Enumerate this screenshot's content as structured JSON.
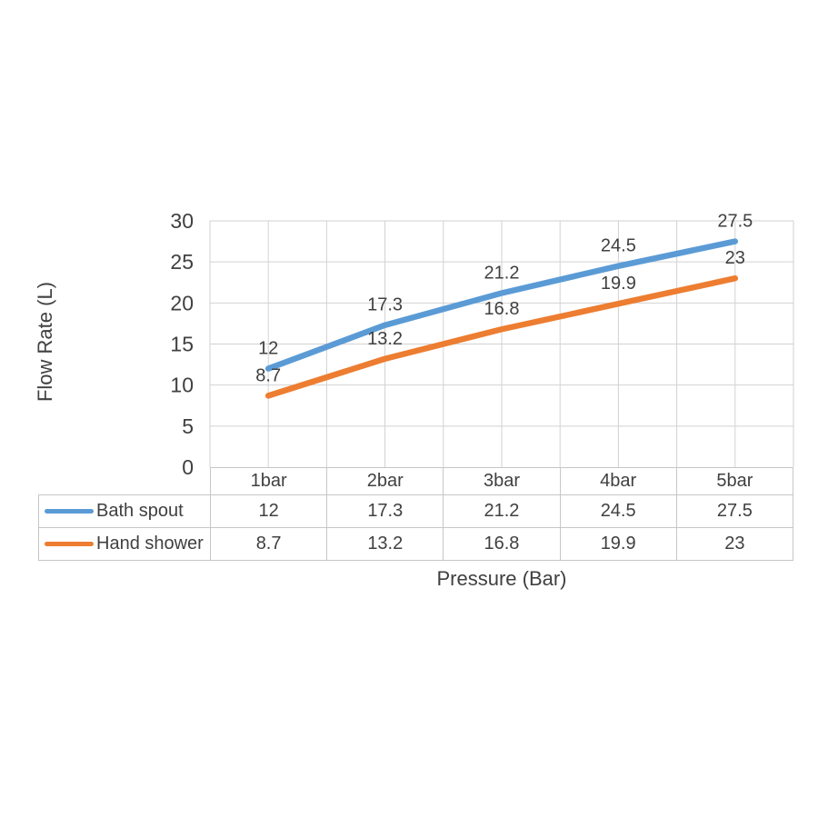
{
  "chart_data": {
    "type": "line",
    "xlabel": "Pressure (Bar)",
    "ylabel": "Flow Rate (L)",
    "categories": [
      "1bar",
      "2bar",
      "3bar",
      "4bar",
      "5bar"
    ],
    "series": [
      {
        "name": "Bath spout",
        "color": "#5B9BD5",
        "values": [
          12,
          17.3,
          21.2,
          24.5,
          27.5
        ]
      },
      {
        "name": "Hand shower",
        "color": "#ED7D31",
        "values": [
          8.7,
          13.2,
          16.8,
          19.9,
          23
        ]
      }
    ],
    "y_ticks": [
      0,
      5,
      10,
      15,
      20,
      25,
      30
    ],
    "ylim": [
      0,
      30
    ],
    "grid": true,
    "minor_x_gridlines": true,
    "data_labels": "above",
    "legend_position": "data-table-left",
    "gridline_color": "#d2d2d2",
    "border_color": "#c6c6c6",
    "text_color": "#404040"
  }
}
